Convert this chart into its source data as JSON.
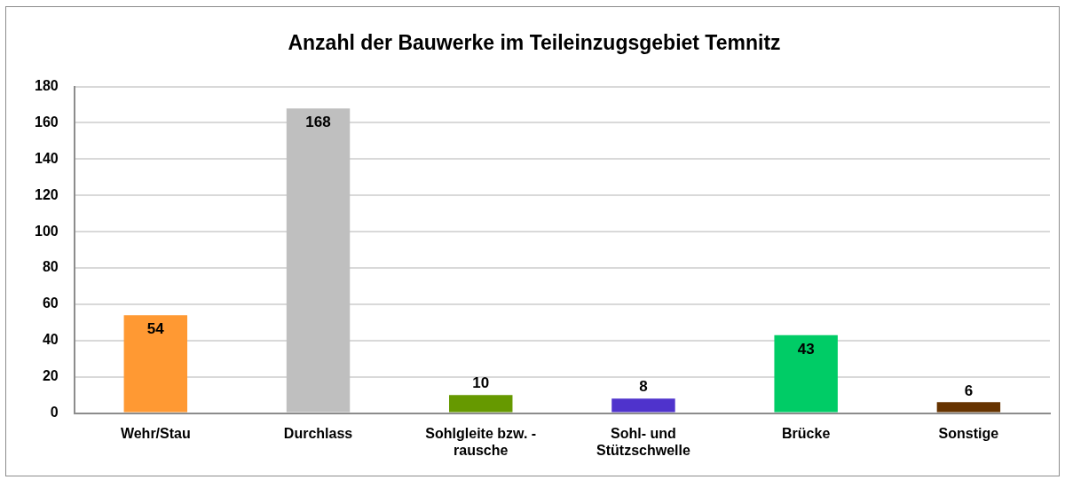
{
  "chart_data": {
    "type": "bar",
    "title": "Anzahl der Bauwerke im Teileinzugsgebiet Temnitz",
    "categories": [
      "Wehr/Stau",
      "Durchlass",
      "Sohlgleite bzw. -rausche",
      "Sohl- und Stützschwelle",
      "Brücke",
      "Sonstige"
    ],
    "values": [
      54,
      168,
      10,
      8,
      43,
      6
    ],
    "colors": [
      "#ff9933",
      "#bfbfbf",
      "#669900",
      "#4f33cc",
      "#00cc66",
      "#663300"
    ],
    "ylim": [
      0,
      180
    ],
    "yticks": [
      0,
      20,
      40,
      60,
      80,
      100,
      120,
      140,
      160,
      180
    ],
    "grid": "y",
    "data_labels": true
  }
}
